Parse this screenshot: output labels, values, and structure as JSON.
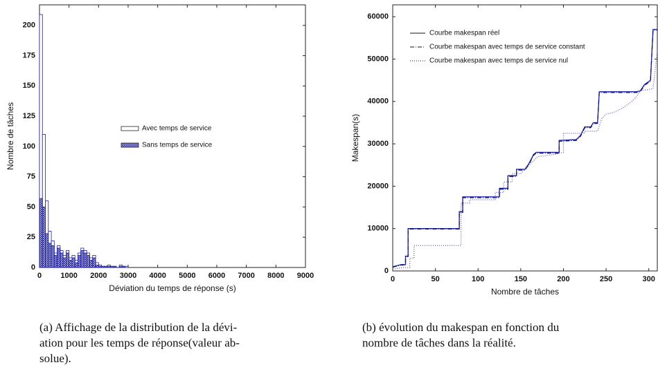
{
  "chart_data": [
    {
      "type": "histogram",
      "xlabel": "Déviation du temps de réponse (s)",
      "ylabel": "Nombre de tâches",
      "caption": [
        "(a) Affichage de la distribution de la dévi-",
        "ation pour les temps de réponse(valeur ab-",
        "solue)."
      ],
      "bins": [
        0,
        100,
        200,
        300,
        400,
        500,
        600,
        700,
        800,
        900,
        1000,
        1100,
        1200,
        1300,
        1400,
        1500,
        1600,
        1700,
        1800,
        1900,
        2000,
        2100,
        2200,
        2300,
        2400,
        2500,
        2600,
        2700,
        2800,
        2900,
        3000
      ],
      "series": [
        {
          "name": "Avec temps de service",
          "color": "#1c1c9c",
          "pattern": "none",
          "values": [
            209,
            110,
            55,
            30,
            22,
            12,
            18,
            14,
            10,
            14,
            8,
            10,
            6,
            12,
            16,
            14,
            12,
            8,
            10,
            4,
            2,
            1,
            1,
            2,
            1,
            1,
            0,
            2,
            1,
            1
          ]
        },
        {
          "name": "Sans temps de service",
          "color": "#1c1c9c",
          "pattern": "hatch",
          "values": [
            57,
            50,
            28,
            20,
            18,
            10,
            16,
            12,
            8,
            12,
            6,
            8,
            4,
            10,
            14,
            12,
            10,
            6,
            8,
            2,
            1,
            1,
            1,
            1,
            1,
            1,
            0,
            1,
            1,
            0
          ]
        }
      ],
      "xlim": [
        0,
        9000
      ],
      "xticks": [
        0,
        1000,
        2000,
        3000,
        4000,
        5000,
        6000,
        7000,
        8000,
        9000
      ],
      "ylim": [
        0,
        217
      ],
      "yticks": [
        0,
        25,
        50,
        75,
        100,
        125,
        150,
        175,
        200
      ],
      "grid": false
    },
    {
      "type": "line",
      "xlabel": "Nombre de tâches",
      "ylabel": "Makespan(s)",
      "caption": [
        "(b) évolution du makespan en fonction du",
        "nombre de tâches dans la réalité."
      ],
      "series": [
        {
          "name": "Courbe makespan réel",
          "color": "#1f2aa0",
          "linestyle": "solid",
          "x": [
            0,
            10,
            15,
            15,
            18,
            18,
            78,
            78,
            82,
            82,
            125,
            125,
            135,
            135,
            145,
            145,
            155,
            160,
            165,
            168,
            195,
            195,
            215,
            220,
            225,
            232,
            235,
            240,
            242,
            285,
            290,
            295,
            302,
            305,
            310
          ],
          "values": [
            1000,
            1500,
            1500,
            3500,
            3500,
            10000,
            10000,
            14000,
            14000,
            17500,
            17500,
            19500,
            19500,
            22500,
            22500,
            24000,
            24000,
            25500,
            27500,
            28000,
            28000,
            30800,
            31000,
            32000,
            34000,
            34000,
            35000,
            35000,
            42300,
            42300,
            42500,
            44000,
            45000,
            57000,
            57000
          ]
        },
        {
          "name": "Courbe makespan avec temps de service constant",
          "color": "#101070",
          "linestyle": "dashdot",
          "x": [
            0,
            10,
            15,
            15,
            18,
            18,
            78,
            78,
            82,
            82,
            125,
            125,
            135,
            135,
            145,
            145,
            155,
            160,
            165,
            168,
            195,
            195,
            215,
            220,
            225,
            232,
            235,
            240,
            242,
            285,
            290,
            295,
            302,
            305,
            310
          ],
          "values": [
            900,
            1400,
            1400,
            3400,
            3400,
            9900,
            9900,
            13800,
            13800,
            17300,
            17300,
            19300,
            19300,
            22300,
            22300,
            23800,
            23800,
            25300,
            27300,
            27800,
            27800,
            30600,
            30800,
            31800,
            33800,
            33800,
            34800,
            34800,
            42100,
            42100,
            42300,
            43800,
            44800,
            56800,
            56800
          ]
        },
        {
          "name": "Courbe makespan avec temps de service nul",
          "color": "#5a5ac0",
          "linestyle": "dotted",
          "x": [
            0,
            12,
            20,
            20,
            25,
            25,
            80,
            80,
            90,
            90,
            120,
            120,
            130,
            130,
            140,
            140,
            150,
            160,
            170,
            190,
            200,
            200,
            225,
            225,
            240,
            245,
            250,
            260,
            270,
            280,
            285,
            290,
            305,
            310,
            310
          ],
          "values": [
            500,
            800,
            800,
            3000,
            3000,
            6000,
            6000,
            16000,
            16000,
            16800,
            16800,
            18500,
            18500,
            21000,
            21000,
            23000,
            23000,
            25000,
            27000,
            27500,
            28000,
            32500,
            32500,
            33000,
            33000,
            36000,
            37000,
            37500,
            38500,
            40000,
            41000,
            42500,
            43000,
            52000,
            53500
          ]
        }
      ],
      "xlim": [
        0,
        310
      ],
      "xticks": [
        0,
        50,
        100,
        150,
        200,
        250,
        300
      ],
      "ylim": [
        0,
        62800
      ],
      "yticks": [
        0,
        10000,
        20000,
        30000,
        40000,
        50000,
        60000
      ],
      "grid": false
    }
  ]
}
